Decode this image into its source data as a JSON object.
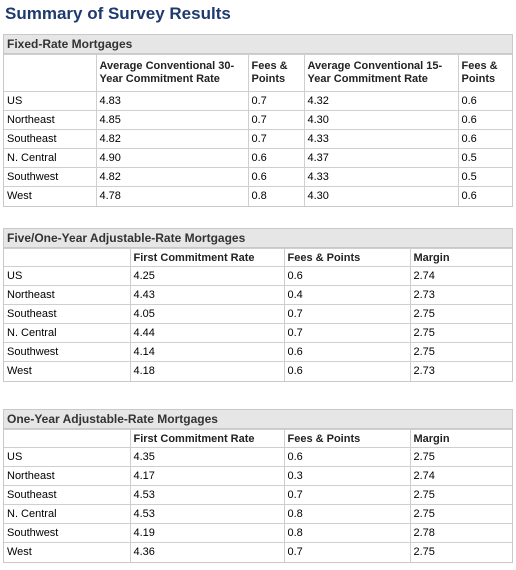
{
  "title": "Summary of Survey Results",
  "fixed": {
    "heading": "Fixed-Rate Mortgages",
    "columns": [
      "",
      "Average Conventional 30-Year Commitment Rate",
      "Fees & Points",
      "Average Conventional 15-Year Commitment Rate",
      "Fees & Points"
    ],
    "rows": [
      [
        "US",
        "4.83",
        "0.7",
        "4.32",
        "0.6"
      ],
      [
        "Northeast",
        "4.85",
        "0.7",
        "4.30",
        "0.6"
      ],
      [
        "Southeast",
        "4.82",
        "0.7",
        "4.33",
        "0.6"
      ],
      [
        "N. Central",
        "4.90",
        "0.6",
        "4.37",
        "0.5"
      ],
      [
        "Southwest",
        "4.82",
        "0.6",
        "4.33",
        "0.5"
      ],
      [
        "West",
        "4.78",
        "0.8",
        "4.30",
        "0.6"
      ]
    ]
  },
  "five_one": {
    "heading": "Five/One-Year Adjustable-Rate Mortgages",
    "columns": [
      "",
      "First Commitment Rate",
      "Fees & Points",
      "Margin"
    ],
    "rows": [
      [
        "US",
        "4.25",
        "0.6",
        "2.74"
      ],
      [
        "Northeast",
        "4.43",
        "0.4",
        "2.73"
      ],
      [
        "Southeast",
        "4.05",
        "0.7",
        "2.75"
      ],
      [
        "N. Central",
        "4.44",
        "0.7",
        "2.75"
      ],
      [
        "Southwest",
        "4.14",
        "0.6",
        "2.75"
      ],
      [
        "West",
        "4.18",
        "0.6",
        "2.73"
      ]
    ]
  },
  "one_year": {
    "heading": "One-Year Adjustable-Rate Mortgages",
    "columns": [
      "",
      "First Commitment Rate",
      "Fees & Points",
      "Margin"
    ],
    "rows": [
      [
        "US",
        "4.35",
        "0.6",
        "2.75"
      ],
      [
        "Northeast",
        "4.17",
        "0.3",
        "2.74"
      ],
      [
        "Southeast",
        "4.53",
        "0.7",
        "2.75"
      ],
      [
        "N. Central",
        "4.53",
        "0.8",
        "2.75"
      ],
      [
        "Southwest",
        "4.19",
        "0.8",
        "2.78"
      ],
      [
        "West",
        "4.36",
        "0.7",
        "2.75"
      ]
    ]
  }
}
